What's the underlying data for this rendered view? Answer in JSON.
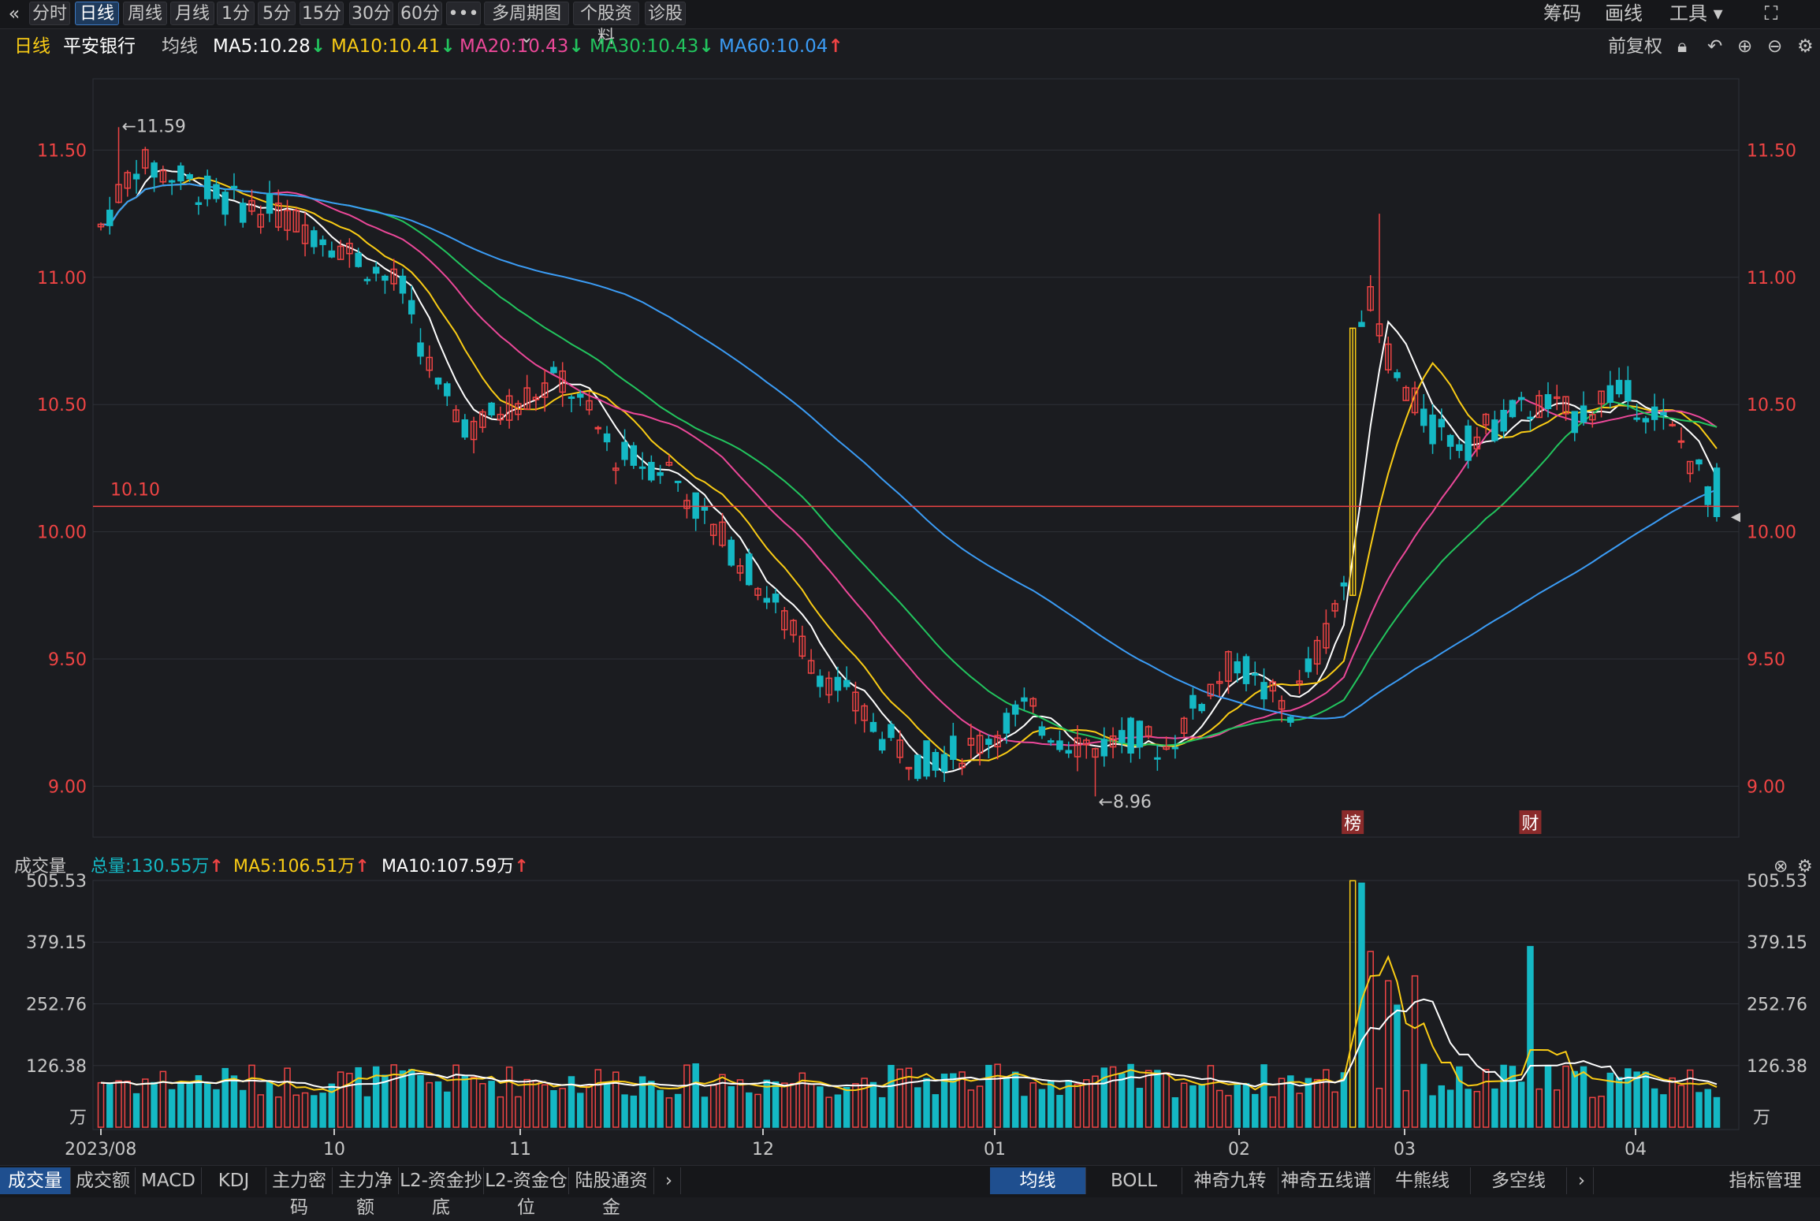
{
  "toolbar": {
    "collapse_icon": "«",
    "buttons": [
      "分时",
      "日线",
      "周线",
      "月线",
      "1分",
      "5分",
      "15分",
      "30分",
      "60分",
      "•••",
      "多周期图 ⌄",
      "个股资料",
      "诊股"
    ],
    "active_index": 1,
    "right": [
      "筹码",
      "画线",
      "工具 ▾"
    ],
    "fullscreen_icon": "⛶"
  },
  "info": {
    "period": "日线",
    "stock_name": "平安银行",
    "ma_label": "均线",
    "ma5": "MA5:10.28",
    "ma10": "MA10:10.41",
    "ma20": "MA20:10.43",
    "ma30": "MA30:10.43",
    "ma60": "MA60:10.04",
    "adjust": "前复权",
    "icons": [
      "lock",
      "undo",
      "plus",
      "minus",
      "gear"
    ]
  },
  "volume_info": {
    "title": "成交量",
    "total": "总量:130.55万",
    "ma5": "MA5:106.51万",
    "ma10": "MA10:107.59万"
  },
  "tabs_left": [
    "成交量",
    "成交额",
    "MACD",
    "KDJ",
    "主力密码",
    "主力净额",
    "L2-资金抄底",
    "L2-资金仓位",
    "陆股通资金"
  ],
  "tabs_right": [
    "均线",
    "BOLL",
    "神奇九转",
    "神奇五线谱",
    "牛熊线",
    "多空线"
  ],
  "tabs_end": "指标管理",
  "tab_arrow": "›",
  "colors": {
    "up": "#ef4444",
    "down": "#14b8c4",
    "ma5": "#ffffff",
    "ma10": "#facc15",
    "ma20": "#ec4899",
    "ma30": "#22c55e",
    "ma60": "#3b9cf5",
    "grid": "#2e3037",
    "axis_text": "#ef4444"
  },
  "chart_data": {
    "type": "candlestick",
    "ylim": [
      8.8,
      11.78
    ],
    "price_ticks": [
      "11.50",
      "11.00",
      "10.50",
      "10.00",
      "9.50",
      "9.00"
    ],
    "price_tick_values": [
      11.5,
      11.0,
      10.5,
      10.0,
      9.5,
      9.0
    ],
    "x_labels": [
      "2023/08",
      "10",
      "11",
      "12",
      "01",
      "02",
      "03",
      "04"
    ],
    "annotations": {
      "high": "←11.59",
      "low": "←8.96",
      "current_line": "10.10",
      "current_value": 10.1,
      "markers": [
        "榜",
        "财"
      ]
    },
    "volume_ticks": [
      "505.53",
      "379.15",
      "252.76",
      "126.38",
      "万"
    ],
    "volume_tick_values": [
      505.53,
      379.15,
      252.76,
      126.38
    ],
    "volume_unit": "万",
    "volume_max": 505.53
  }
}
